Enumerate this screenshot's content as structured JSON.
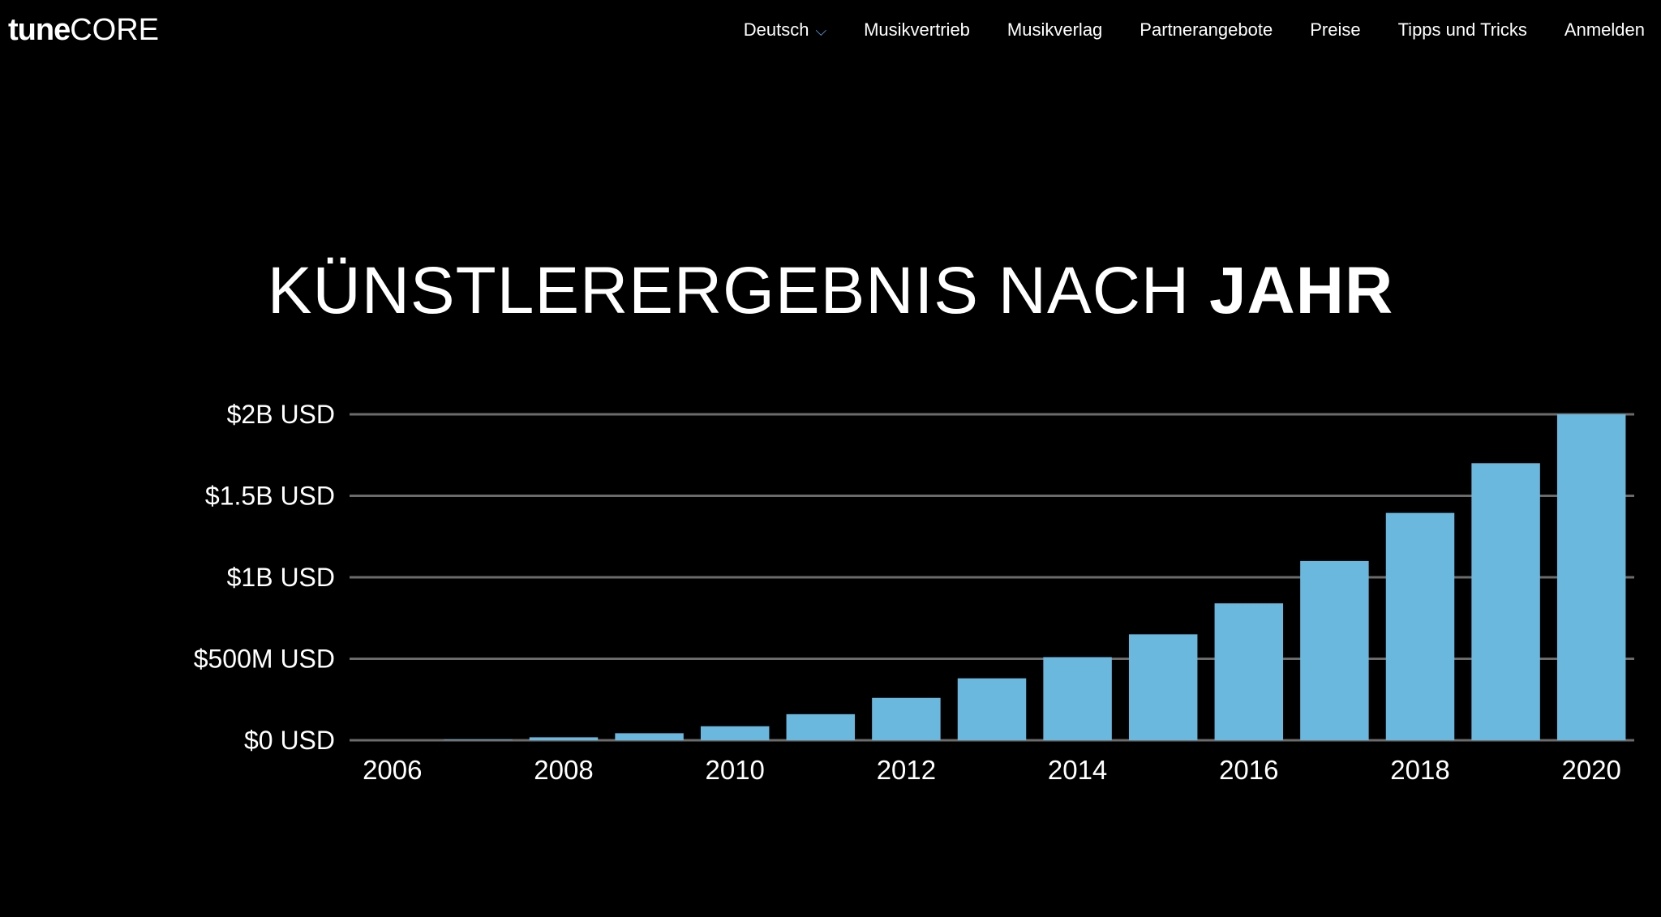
{
  "header": {
    "logo": {
      "part1": "tune",
      "part2": "CORE"
    },
    "nav": [
      {
        "label": "Deutsch",
        "icon": "chevron-down-icon"
      },
      {
        "label": "Musikvertrieb"
      },
      {
        "label": "Musikverlag"
      },
      {
        "label": "Partnerangebote"
      },
      {
        "label": "Preise"
      },
      {
        "label": "Tipps und Tricks"
      },
      {
        "label": "Anmelden"
      }
    ]
  },
  "colors": {
    "background": "#000000",
    "bar": "#6ab8de",
    "grid": "#6b6b6b",
    "accent": "#5aa9e0"
  },
  "chart_data": {
    "type": "bar",
    "title_light": "KÜNSTLERERGEBNIS NACH",
    "title_bold": "JAHR",
    "categories": [
      "2006",
      "2007",
      "2008",
      "2009",
      "2010",
      "2011",
      "2012",
      "2013",
      "2014",
      "2015",
      "2016",
      "2017",
      "2018",
      "2019",
      "2020"
    ],
    "values": [
      0,
      0.003,
      0.018,
      0.043,
      0.086,
      0.16,
      0.26,
      0.38,
      0.51,
      0.65,
      0.84,
      1.1,
      1.395,
      1.7,
      2.0
    ],
    "unit": "billion USD",
    "ylim": [
      0,
      2
    ],
    "yticks": [
      0,
      0.5,
      1,
      1.5,
      2
    ],
    "ytick_labels": [
      "$0 USD",
      "$500M USD",
      "$1B USD",
      "$1.5B USD",
      "$2B USD"
    ],
    "xtick_labels": [
      "2006",
      "2008",
      "2010",
      "2012",
      "2014",
      "2016",
      "2018",
      "2020"
    ],
    "grid": true,
    "legend": "none"
  }
}
